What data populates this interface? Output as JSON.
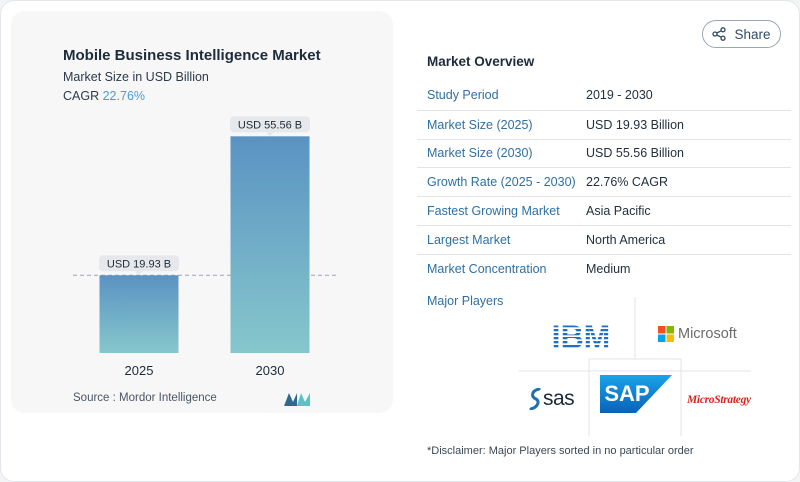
{
  "share": {
    "label": "Share",
    "icon": "share-icon"
  },
  "chart_data": {
    "type": "bar",
    "title": "Mobile Business Intelligence Market",
    "subtitle": "Market Size in USD Billion",
    "cagr_label": "CAGR",
    "cagr_value": "22.76%",
    "categories": [
      "2025",
      "2030"
    ],
    "values": [
      19.93,
      55.56
    ],
    "data_labels": [
      "USD 19.93 B",
      "USD 55.56 B"
    ],
    "ylim": [
      0,
      60
    ],
    "grid": false,
    "source": "Source :  Mordor Intelligence",
    "colors": {
      "bar_top": "#5a93c2",
      "bar_bottom": "#86c7cc"
    }
  },
  "overview": {
    "title": "Market Overview",
    "rows": [
      {
        "key": "Study Period",
        "value": "2019 - 2030"
      },
      {
        "key": "Market Size (2025)",
        "value": "USD 19.93 Billion"
      },
      {
        "key": "Market Size (2030)",
        "value": "USD 55.56 Billion"
      },
      {
        "key": "Growth Rate (2025 - 2030)",
        "value": "22.76% CAGR"
      },
      {
        "key": "Fastest Growing Market",
        "value": "Asia Pacific"
      },
      {
        "key": "Largest Market",
        "value": "North America"
      },
      {
        "key": "Market Concentration",
        "value": "Medium"
      }
    ]
  },
  "players": {
    "title": "Major Players",
    "logos": [
      {
        "name": "ibm-logo",
        "text": "IBM"
      },
      {
        "name": "microsoft-logo",
        "text": "Microsoft"
      },
      {
        "name": "sas-logo",
        "text": "sas"
      },
      {
        "name": "sap-logo",
        "text": "SAP"
      },
      {
        "name": "microstrategy-logo",
        "text": "MicroStrategy"
      }
    ]
  },
  "disclaimer": "*Disclaimer: Major Players sorted in no particular order"
}
